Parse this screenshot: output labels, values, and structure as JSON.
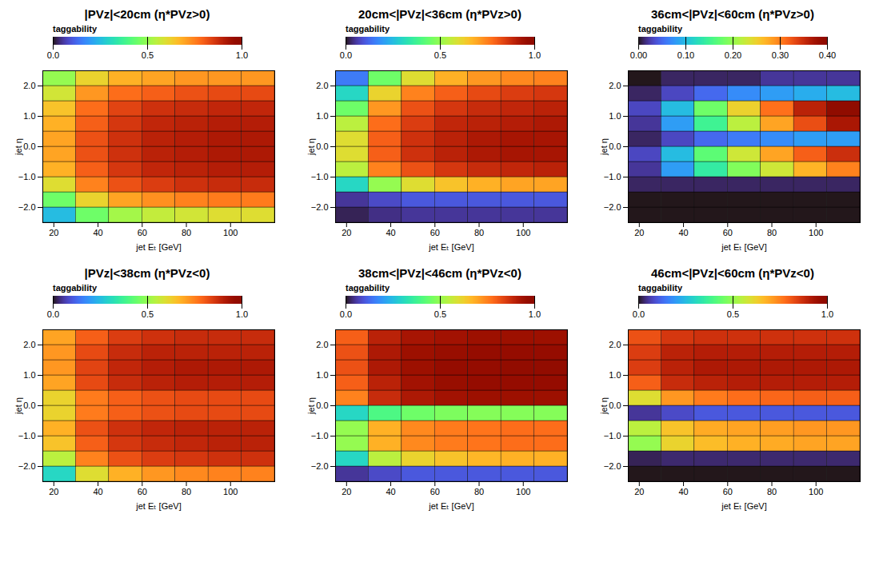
{
  "chart_data": [
    {
      "type": "heatmap",
      "title": "|PVz|<20cm (η*PVz>0)",
      "x_label": "jet Eₜ [GeV]",
      "y_label": "jet η",
      "z_label": "taggability",
      "color": "turbo",
      "x_bins": [
        15,
        30,
        45,
        60,
        75,
        90,
        105,
        120
      ],
      "y_bins": [
        -2.5,
        -2,
        -1.5,
        -1,
        -0.5,
        0,
        0.5,
        1,
        1.5,
        2,
        2.5
      ],
      "xlim": [
        15,
        120
      ],
      "xticks": [
        20,
        40,
        60,
        80,
        100
      ],
      "ylim": [
        -2.5,
        2.5
      ],
      "yticks": [
        -2,
        -1,
        0,
        1,
        2
      ],
      "zlim": [
        0,
        1
      ],
      "zticks": [
        0,
        0.5,
        1
      ],
      "values": [
        [
          0.25,
          0.45,
          0.52,
          0.56,
          0.58,
          0.6,
          0.6
        ],
        [
          0.45,
          0.62,
          0.7,
          0.73,
          0.75,
          0.76,
          0.76
        ],
        [
          0.6,
          0.75,
          0.82,
          0.85,
          0.87,
          0.88,
          0.88
        ],
        [
          0.68,
          0.8,
          0.86,
          0.89,
          0.9,
          0.91,
          0.91
        ],
        [
          0.7,
          0.82,
          0.87,
          0.9,
          0.91,
          0.92,
          0.92
        ],
        [
          0.7,
          0.82,
          0.87,
          0.9,
          0.91,
          0.92,
          0.92
        ],
        [
          0.68,
          0.8,
          0.86,
          0.89,
          0.9,
          0.91,
          0.91
        ],
        [
          0.65,
          0.78,
          0.84,
          0.87,
          0.88,
          0.89,
          0.89
        ],
        [
          0.58,
          0.72,
          0.78,
          0.8,
          0.82,
          0.83,
          0.83
        ],
        [
          0.5,
          0.62,
          0.68,
          0.7,
          0.72,
          0.72,
          0.72
        ]
      ]
    },
    {
      "type": "heatmap",
      "title": "20cm<|PVz|<36cm (η*PVz>0)",
      "x_label": "jet Eₜ [GeV]",
      "y_label": "jet η",
      "z_label": "taggability",
      "color": "turbo",
      "x_bins": [
        15,
        30,
        45,
        60,
        75,
        90,
        105,
        120
      ],
      "y_bins": [
        -2.5,
        -2,
        -1.5,
        -1,
        -0.5,
        0,
        0.5,
        1,
        1.5,
        2,
        2.5
      ],
      "xlim": [
        15,
        120
      ],
      "xticks": [
        20,
        40,
        60,
        80,
        100
      ],
      "ylim": [
        -2.5,
        2.5
      ],
      "yticks": [
        -2,
        -1,
        0,
        1,
        2
      ],
      "zlim": [
        0,
        1
      ],
      "zticks": [
        0,
        0.5,
        1
      ],
      "values": [
        [
          0.02,
          0.04,
          0.05,
          0.05,
          0.05,
          0.05,
          0.05
        ],
        [
          0.05,
          0.08,
          0.1,
          0.1,
          0.1,
          0.1,
          0.1
        ],
        [
          0.3,
          0.5,
          0.6,
          0.65,
          0.68,
          0.7,
          0.7
        ],
        [
          0.55,
          0.75,
          0.82,
          0.86,
          0.88,
          0.89,
          0.9
        ],
        [
          0.6,
          0.8,
          0.87,
          0.9,
          0.92,
          0.93,
          0.93
        ],
        [
          0.6,
          0.8,
          0.87,
          0.9,
          0.92,
          0.93,
          0.93
        ],
        [
          0.55,
          0.78,
          0.85,
          0.89,
          0.9,
          0.91,
          0.92
        ],
        [
          0.45,
          0.72,
          0.82,
          0.86,
          0.88,
          0.89,
          0.9
        ],
        [
          0.3,
          0.62,
          0.75,
          0.8,
          0.83,
          0.85,
          0.86
        ],
        [
          0.15,
          0.45,
          0.6,
          0.68,
          0.72,
          0.74,
          0.75
        ]
      ]
    },
    {
      "type": "heatmap",
      "title": "36cm<|PVz|<60cm (η*PVz>0)",
      "x_label": "jet Eₜ [GeV]",
      "y_label": "jet η",
      "z_label": "taggability",
      "color": "turbo",
      "x_bins": [
        15,
        30,
        45,
        60,
        75,
        90,
        105,
        120
      ],
      "y_bins": [
        -2.5,
        -2,
        -1.5,
        -1,
        -0.5,
        0,
        0.5,
        1,
        1.5,
        2,
        2.5
      ],
      "xlim": [
        15,
        120
      ],
      "xticks": [
        20,
        40,
        60,
        80,
        100
      ],
      "ylim": [
        -2.5,
        2.5
      ],
      "yticks": [
        -2,
        -1,
        0,
        1,
        2
      ],
      "zlim": [
        0,
        0.4
      ],
      "zticks": [
        0,
        0.1,
        0.2,
        0.3,
        0.4
      ],
      "values": [
        [
          0,
          0,
          0,
          0,
          0,
          0,
          0
        ],
        [
          0,
          0,
          0,
          0,
          0,
          0,
          0
        ],
        [
          0.01,
          0.01,
          0.01,
          0.01,
          0.01,
          0.01,
          0.01
        ],
        [
          0.02,
          0.08,
          0.14,
          0.19,
          0.23,
          0.27,
          0.3
        ],
        [
          0.03,
          0.1,
          0.17,
          0.23,
          0.28,
          0.32,
          0.35
        ],
        [
          0.01,
          0.03,
          0.05,
          0.06,
          0.07,
          0.08,
          0.08
        ],
        [
          0.02,
          0.08,
          0.15,
          0.22,
          0.28,
          0.33,
          0.37
        ],
        [
          0.03,
          0.1,
          0.18,
          0.25,
          0.31,
          0.36,
          0.4
        ],
        [
          0.01,
          0.03,
          0.05,
          0.07,
          0.08,
          0.09,
          0.1
        ],
        [
          0,
          0.01,
          0.01,
          0.01,
          0.02,
          0.02,
          0.02
        ]
      ]
    },
    {
      "type": "heatmap",
      "title": "|PVz|<38cm (η*PVz<0)",
      "x_label": "jet Eₜ [GeV]",
      "y_label": "jet η",
      "z_label": "taggability",
      "color": "turbo",
      "x_bins": [
        15,
        30,
        45,
        60,
        75,
        90,
        105,
        120
      ],
      "y_bins": [
        -2.5,
        -2,
        -1.5,
        -1,
        -0.5,
        0,
        0.5,
        1,
        1.5,
        2,
        2.5
      ],
      "xlim": [
        15,
        120
      ],
      "xticks": [
        20,
        40,
        60,
        80,
        100
      ],
      "ylim": [
        -2.5,
        2.5
      ],
      "yticks": [
        -2,
        -1,
        0,
        1,
        2
      ],
      "zlim": [
        0,
        1
      ],
      "zticks": [
        0,
        0.5,
        1
      ],
      "values": [
        [
          0.3,
          0.6,
          0.68,
          0.72,
          0.74,
          0.75,
          0.75
        ],
        [
          0.55,
          0.75,
          0.82,
          0.85,
          0.86,
          0.87,
          0.87
        ],
        [
          0.65,
          0.8,
          0.86,
          0.88,
          0.89,
          0.9,
          0.9
        ],
        [
          0.68,
          0.82,
          0.87,
          0.89,
          0.9,
          0.9,
          0.9
        ],
        [
          0.62,
          0.76,
          0.8,
          0.82,
          0.83,
          0.83,
          0.83
        ],
        [
          0.62,
          0.76,
          0.8,
          0.82,
          0.83,
          0.83,
          0.83
        ],
        [
          0.7,
          0.83,
          0.88,
          0.9,
          0.91,
          0.91,
          0.91
        ],
        [
          0.72,
          0.84,
          0.89,
          0.91,
          0.92,
          0.92,
          0.92
        ],
        [
          0.72,
          0.83,
          0.88,
          0.9,
          0.9,
          0.9,
          0.9
        ],
        [
          0.7,
          0.8,
          0.85,
          0.87,
          0.88,
          0.88,
          0.88
        ]
      ]
    },
    {
      "type": "heatmap",
      "title": "38cm<|PVz|<46cm (η*PVz<0)",
      "x_label": "jet Eₜ [GeV]",
      "y_label": "jet η",
      "z_label": "taggability",
      "color": "turbo",
      "x_bins": [
        15,
        30,
        45,
        60,
        75,
        90,
        105,
        120
      ],
      "y_bins": [
        -2.5,
        -2,
        -1.5,
        -1,
        -0.5,
        0,
        0.5,
        1,
        1.5,
        2,
        2.5
      ],
      "xlim": [
        15,
        120
      ],
      "xticks": [
        20,
        40,
        60,
        80,
        100
      ],
      "ylim": [
        -2.5,
        2.5
      ],
      "yticks": [
        -2,
        -1,
        0,
        1,
        2
      ],
      "zlim": [
        0,
        1
      ],
      "zticks": [
        0,
        0.5,
        1
      ],
      "values": [
        [
          0.05,
          0.08,
          0.1,
          0.1,
          0.1,
          0.1,
          0.1
        ],
        [
          0.3,
          0.55,
          0.62,
          0.65,
          0.67,
          0.68,
          0.68
        ],
        [
          0.5,
          0.68,
          0.74,
          0.76,
          0.77,
          0.78,
          0.78
        ],
        [
          0.5,
          0.68,
          0.74,
          0.76,
          0.77,
          0.78,
          0.78
        ],
        [
          0.3,
          0.4,
          0.45,
          0.47,
          0.48,
          0.48,
          0.48
        ],
        [
          0.75,
          0.88,
          0.92,
          0.94,
          0.95,
          0.95,
          0.95
        ],
        [
          0.8,
          0.9,
          0.94,
          0.96,
          0.97,
          0.97,
          0.97
        ],
        [
          0.82,
          0.92,
          0.95,
          0.97,
          0.97,
          0.98,
          0.98
        ],
        [
          0.82,
          0.92,
          0.95,
          0.96,
          0.97,
          0.97,
          0.97
        ],
        [
          0.8,
          0.9,
          0.93,
          0.94,
          0.95,
          0.95,
          0.95
        ]
      ]
    },
    {
      "type": "heatmap",
      "title": "46cm<|PVz|<60cm (η*PVz<0)",
      "x_label": "jet Eₜ [GeV]",
      "y_label": "jet η",
      "z_label": "taggability",
      "color": "turbo",
      "x_bins": [
        15,
        30,
        45,
        60,
        75,
        90,
        105,
        120
      ],
      "y_bins": [
        -2.5,
        -2,
        -1.5,
        -1,
        -0.5,
        0,
        0.5,
        1,
        1.5,
        2,
        2.5
      ],
      "xlim": [
        15,
        120
      ],
      "xticks": [
        20,
        40,
        60,
        80,
        100
      ],
      "ylim": [
        -2.5,
        2.5
      ],
      "yticks": [
        -2,
        -1,
        0,
        1,
        2
      ],
      "zlim": [
        0,
        1
      ],
      "zticks": [
        0,
        0.5,
        1
      ],
      "values": [
        [
          0,
          0,
          0,
          0,
          0,
          0,
          0
        ],
        [
          0.02,
          0.03,
          0.03,
          0.03,
          0.03,
          0.03,
          0.03
        ],
        [
          0.5,
          0.62,
          0.66,
          0.68,
          0.69,
          0.7,
          0.7
        ],
        [
          0.55,
          0.65,
          0.69,
          0.7,
          0.71,
          0.72,
          0.72
        ],
        [
          0.05,
          0.08,
          0.1,
          0.1,
          0.1,
          0.1,
          0.1
        ],
        [
          0.6,
          0.72,
          0.76,
          0.78,
          0.79,
          0.8,
          0.8
        ],
        [
          0.8,
          0.88,
          0.9,
          0.91,
          0.91,
          0.91,
          0.91
        ],
        [
          0.85,
          0.9,
          0.92,
          0.92,
          0.92,
          0.92,
          0.92
        ],
        [
          0.85,
          0.9,
          0.91,
          0.91,
          0.91,
          0.91,
          0.91
        ],
        [
          0.82,
          0.86,
          0.87,
          0.87,
          0.87,
          0.87,
          0.87
        ]
      ]
    }
  ]
}
